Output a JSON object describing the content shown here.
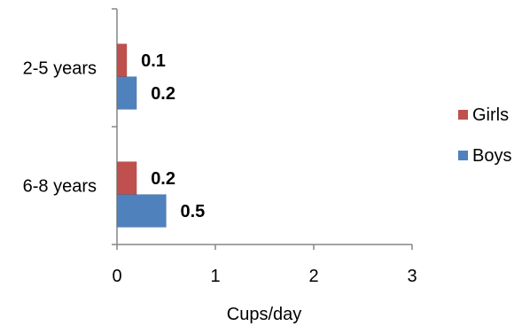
{
  "chart_data": {
    "type": "bar",
    "orientation": "horizontal",
    "categories": [
      "2-5 years",
      "6-8 years"
    ],
    "series": [
      {
        "name": "Girls",
        "values": [
          0.1,
          0.2
        ],
        "color": "#c0504d"
      },
      {
        "name": "Boys",
        "values": [
          0.2,
          0.5
        ],
        "color": "#4f81bd"
      }
    ],
    "data_labels": [
      [
        "0.1",
        "0.2"
      ],
      [
        "0.2",
        "0.5"
      ]
    ],
    "title": "",
    "xlabel": "Cups/day",
    "ylabel": "",
    "xlim": [
      0,
      3
    ],
    "x_ticks": [
      "0",
      "1",
      "2",
      "3"
    ],
    "grid": false,
    "legend": "right"
  }
}
